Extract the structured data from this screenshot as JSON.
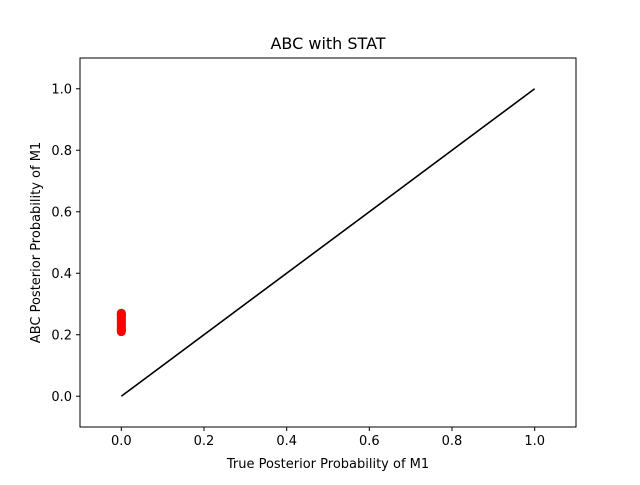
{
  "chart_data": {
    "type": "scatter",
    "title": "ABC with STAT",
    "xlabel": "True Posterior Probability of M1",
    "ylabel": "ABC Posterior Probability of M1",
    "xlim": [
      -0.1,
      1.1
    ],
    "ylim": [
      -0.1,
      1.1
    ],
    "xticks": [
      0.0,
      0.2,
      0.4,
      0.6,
      0.8,
      1.0
    ],
    "yticks": [
      0.0,
      0.2,
      0.4,
      0.6,
      0.8,
      1.0
    ],
    "xtick_labels": [
      "0.0",
      "0.2",
      "0.4",
      "0.6",
      "0.8",
      "1.0"
    ],
    "ytick_labels": [
      "0.0",
      "0.2",
      "0.4",
      "0.6",
      "0.8",
      "1.0"
    ],
    "grid": false,
    "series": [
      {
        "type": "scatter",
        "color": "#ff0000",
        "x": [
          0.0,
          0.0,
          0.0,
          0.0,
          0.0,
          0.0,
          0.0,
          0.0,
          0.0,
          0.0,
          0.0,
          0.0,
          0.0,
          0.0,
          0.0,
          0.0,
          0.0,
          0.0,
          0.0,
          0.0,
          0.0
        ],
        "y": [
          0.21,
          0.2135,
          0.217,
          0.2205,
          0.224,
          0.2275,
          0.231,
          0.2345,
          0.238,
          0.2415,
          0.245,
          0.2485,
          0.252,
          0.2555,
          0.259,
          0.2625,
          0.266,
          0.2695,
          0.27,
          0.215,
          0.265
        ]
      },
      {
        "type": "line",
        "color": "#000000",
        "x": [
          0.0,
          1.0
        ],
        "y": [
          0.0,
          1.0
        ]
      }
    ]
  }
}
